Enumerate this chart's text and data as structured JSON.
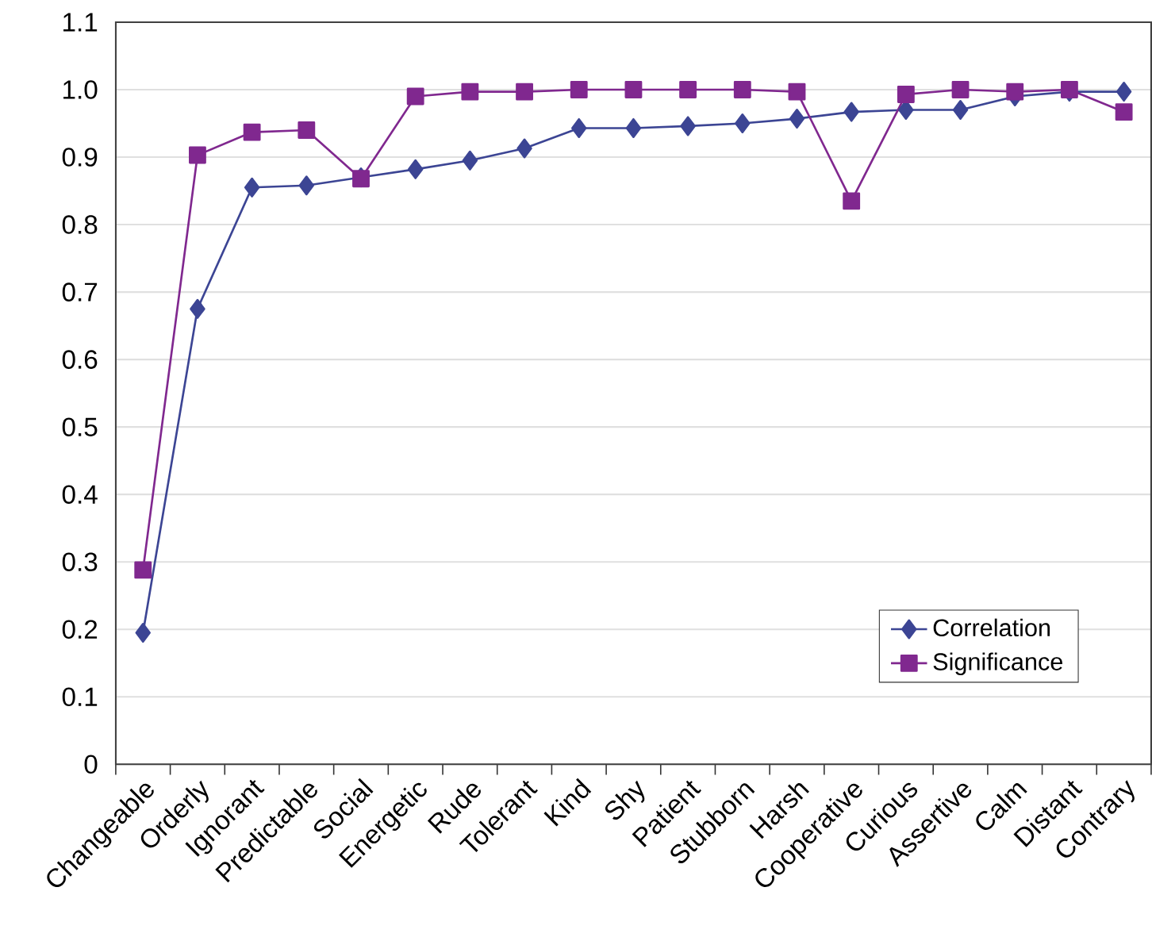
{
  "chart_data": {
    "type": "line",
    "categories": [
      "Changeable",
      "Orderly",
      "Ignorant",
      "Predictable",
      "Social",
      "Energetic",
      "Rude",
      "Tolerant",
      "Kind",
      "Shy",
      "Patient",
      "Stubborn",
      "Harsh",
      "Cooperative",
      "Curious",
      "Assertive",
      "Calm",
      "Distant",
      "Contrary"
    ],
    "series": [
      {
        "name": "Correlation",
        "color": "#3c4594",
        "marker": "diamond",
        "values": [
          0.195,
          0.675,
          0.855,
          0.858,
          0.87,
          0.882,
          0.895,
          0.913,
          0.943,
          0.943,
          0.946,
          0.95,
          0.957,
          0.967,
          0.97,
          0.97,
          0.99,
          0.997,
          0.997
        ]
      },
      {
        "name": "Significance",
        "color": "#80288f",
        "marker": "square",
        "values": [
          0.288,
          0.903,
          0.937,
          0.94,
          0.868,
          0.99,
          0.997,
          0.997,
          1.0,
          1.0,
          1.0,
          1.0,
          0.997,
          0.835,
          0.993,
          1.0,
          0.997,
          1.0,
          0.967
        ]
      }
    ],
    "ylim": [
      0,
      1.1
    ],
    "yticks": [
      0,
      0.1,
      0.2,
      0.3,
      0.4,
      0.5,
      0.6,
      0.7,
      0.8,
      0.9,
      {
        "value": 1,
        "label": "1.0"
      },
      1.1
    ],
    "grid": "y",
    "legend": "bottom right",
    "line_style": "solid"
  }
}
